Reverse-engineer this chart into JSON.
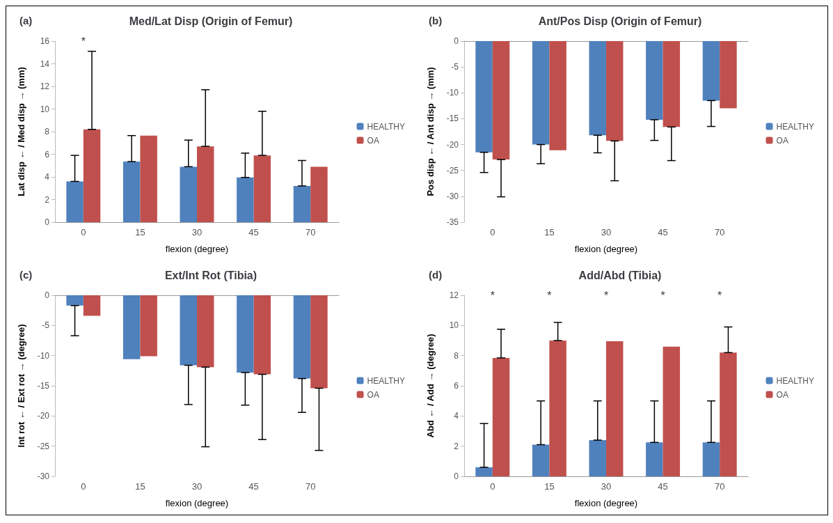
{
  "chart_data": [
    {
      "type": "bar",
      "title": "Med/Lat Disp (Origin of Femur)",
      "xlabel": "flexion (degree)",
      "ylabel": "Lat disp ← / Med disp → (mm)",
      "categories": [
        "0",
        "15",
        "30",
        "45",
        "70"
      ],
      "ylim": [
        0,
        16
      ],
      "yticks": [
        0,
        2,
        4,
        6,
        8,
        10,
        12,
        14,
        16
      ],
      "legend": "right",
      "grid": false,
      "series": [
        {
          "name": "HEALTHY",
          "color": "#4f81bd",
          "values": [
            3.6,
            5.35,
            4.9,
            3.95,
            3.2
          ],
          "errors": [
            [
              3.6,
              5.9
            ],
            [
              5.35,
              7.65
            ],
            [
              4.9,
              7.25
            ],
            [
              3.95,
              6.1
            ],
            [
              3.2,
              5.45
            ]
          ]
        },
        {
          "name": "OA",
          "color": "#c0504d",
          "values": [
            8.2,
            7.65,
            6.7,
            5.9,
            4.9
          ],
          "errors": [
            [
              8.2,
              15.1
            ],
            null,
            [
              6.7,
              11.7
            ],
            [
              5.9,
              9.8
            ],
            null
          ]
        }
      ],
      "annotations": [
        "(a)",
        "*"
      ]
    },
    {
      "type": "bar",
      "title": "Ant/Pos Disp (Origin of Femur)",
      "xlabel": "flexion (degree)",
      "ylabel": "Pos disp ← / Ant disp → (mm)",
      "categories": [
        "0",
        "15",
        "30",
        "45",
        "70"
      ],
      "ylim": [
        -35,
        0
      ],
      "yticks": [
        -35,
        -30,
        -25,
        -20,
        -15,
        -10,
        -5,
        0
      ],
      "legend": "right",
      "grid": false,
      "series": [
        {
          "name": "HEALTHY",
          "color": "#4f81bd",
          "values": [
            -21.5,
            -20.0,
            -18.2,
            -15.2,
            -11.5
          ],
          "errors": [
            [
              -25.4,
              -21.5
            ],
            [
              -23.7,
              -20.0
            ],
            [
              -21.6,
              -18.2
            ],
            [
              -19.2,
              -15.2
            ],
            [
              -16.5,
              -11.5
            ]
          ]
        },
        {
          "name": "OA",
          "color": "#c0504d",
          "values": [
            -22.9,
            -21.1,
            -19.3,
            -16.6,
            -13.0
          ],
          "errors": [
            [
              -30.1,
              -22.9
            ],
            null,
            [
              -27.0,
              -19.3
            ],
            [
              -23.1,
              -16.6
            ],
            null
          ]
        }
      ],
      "annotations": [
        "(b)"
      ]
    },
    {
      "type": "bar",
      "title": "Ext/Int Rot (Tibia)",
      "xlabel": "flexion (degree)",
      "ylabel": "Int rot ← / Ext rot → (degree)",
      "categories": [
        "0",
        "15",
        "30",
        "45",
        "70"
      ],
      "ylim": [
        -30,
        0
      ],
      "yticks": [
        -30,
        -25,
        -20,
        -15,
        -10,
        -5,
        0
      ],
      "legend": "right",
      "grid": false,
      "series": [
        {
          "name": "HEALTHY",
          "color": "#4f81bd",
          "values": [
            -1.7,
            -10.6,
            -11.6,
            -12.8,
            -13.8
          ],
          "errors": [
            [
              -6.7,
              -1.7
            ],
            null,
            [
              -18.1,
              -11.6
            ],
            [
              -18.2,
              -12.8
            ],
            [
              -19.4,
              -13.8
            ]
          ]
        },
        {
          "name": "OA",
          "color": "#c0504d",
          "values": [
            -3.4,
            -10.1,
            -11.9,
            -13.1,
            -15.4
          ],
          "errors": [
            null,
            null,
            [
              -25.1,
              -11.9
            ],
            [
              -23.9,
              -13.1
            ],
            [
              -25.7,
              -15.4
            ]
          ]
        }
      ],
      "annotations": [
        "(c)"
      ]
    },
    {
      "type": "bar",
      "title": "Add/Abd (Tibia)",
      "xlabel": "flexion (degree)",
      "ylabel": "Abd ← / Add → (degree)",
      "categories": [
        "0",
        "15",
        "30",
        "45",
        "70"
      ],
      "ylim": [
        0,
        12
      ],
      "yticks": [
        0,
        2,
        4,
        6,
        8,
        10,
        12
      ],
      "legend": "right",
      "grid": false,
      "series": [
        {
          "name": "HEALTHY",
          "color": "#4f81bd",
          "values": [
            0.6,
            2.1,
            2.4,
            2.25,
            2.25
          ],
          "errors": [
            [
              0.6,
              3.5
            ],
            [
              2.1,
              5.0
            ],
            [
              2.4,
              5.0
            ],
            [
              2.25,
              5.0
            ],
            [
              2.25,
              5.0
            ]
          ]
        },
        {
          "name": "OA",
          "color": "#c0504d",
          "values": [
            7.85,
            9.0,
            8.95,
            8.6,
            8.2
          ],
          "errors": [
            [
              7.85,
              9.75
            ],
            [
              9.0,
              10.2
            ],
            null,
            null,
            [
              8.2,
              9.9
            ]
          ]
        }
      ],
      "annotations": [
        "(d)",
        "*",
        "*",
        "*",
        "*",
        "*"
      ]
    }
  ]
}
